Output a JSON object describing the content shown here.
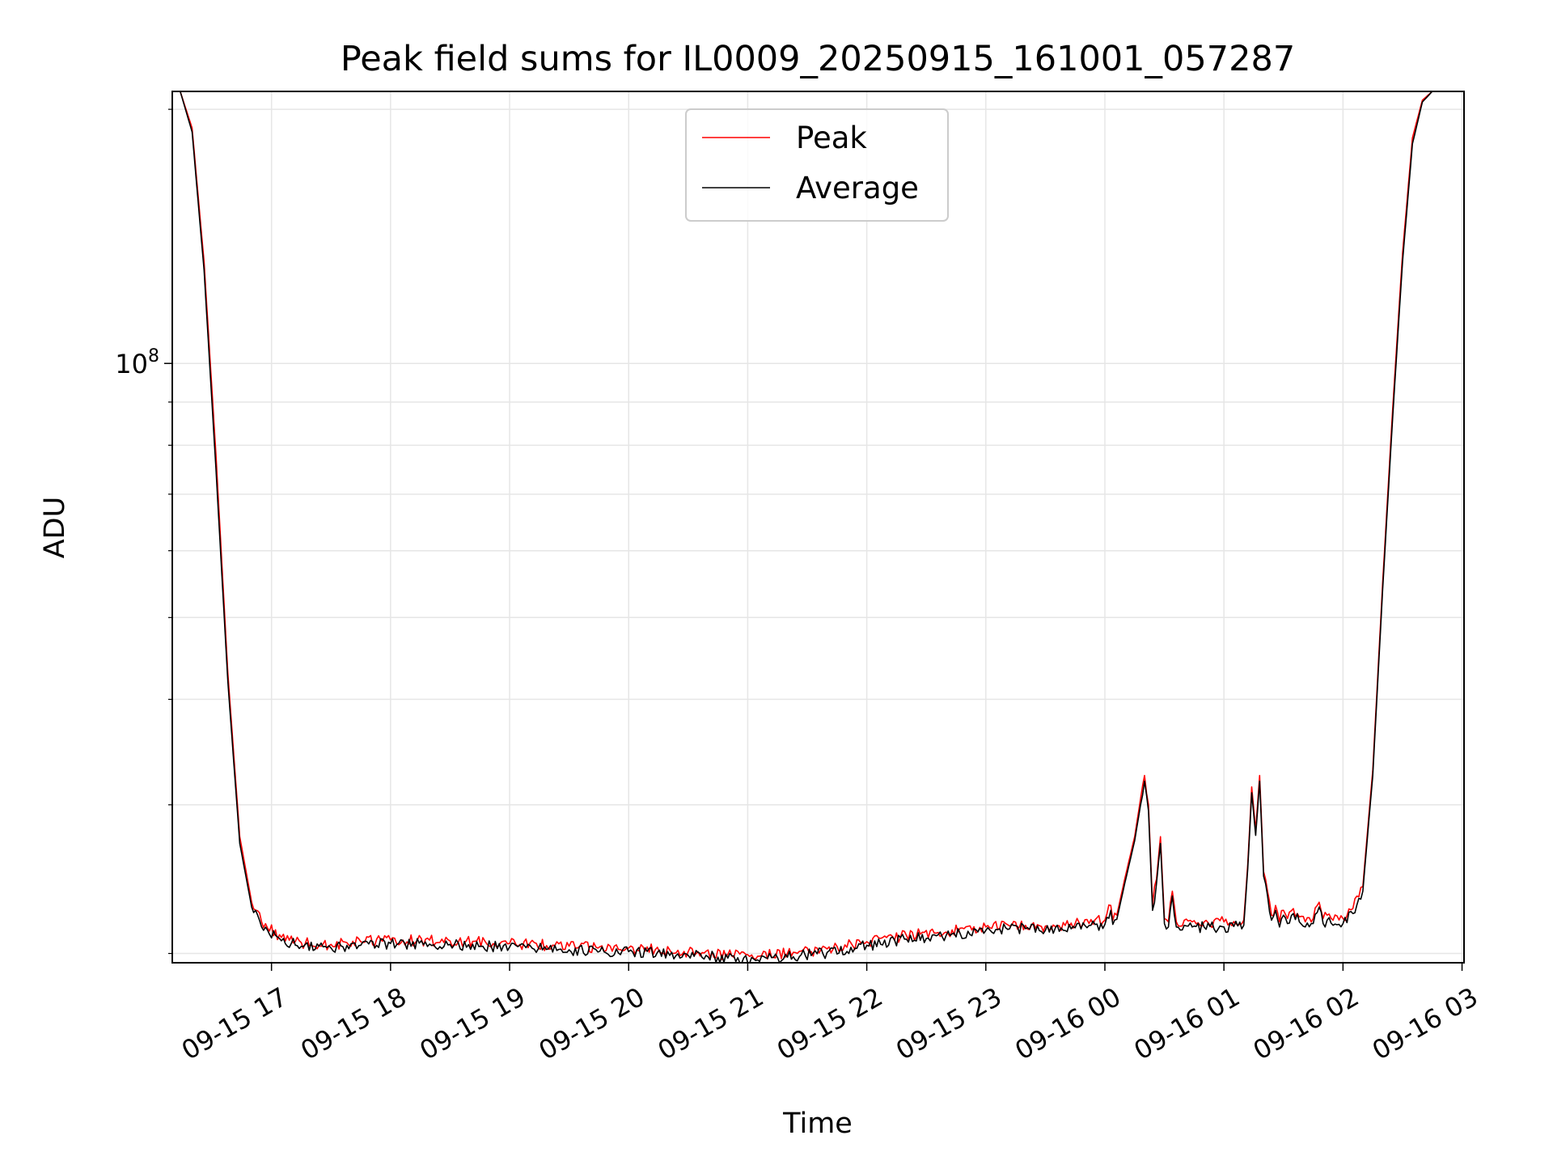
{
  "chart_data": {
    "type": "line",
    "title": "Peak field sums for IL0009_20250915_161001_057287",
    "xlabel": "Time",
    "ylabel": "ADU",
    "y_scale": "log",
    "xlim": [
      "2025-09-15 16:10",
      "2025-09-16 03:01"
    ],
    "ylim": [
      19500000,
      210000000
    ],
    "grid": true,
    "legend_position": "top-center",
    "x_ticks": [
      {
        "value": "2025-09-15 17:00",
        "label": "09-15 17"
      },
      {
        "value": "2025-09-15 18:00",
        "label": "09-15 18"
      },
      {
        "value": "2025-09-15 19:00",
        "label": "09-15 19"
      },
      {
        "value": "2025-09-15 20:00",
        "label": "09-15 20"
      },
      {
        "value": "2025-09-15 21:00",
        "label": "09-15 21"
      },
      {
        "value": "2025-09-15 22:00",
        "label": "09-15 22"
      },
      {
        "value": "2025-09-15 23:00",
        "label": "09-15 23"
      },
      {
        "value": "2025-09-16 00:00",
        "label": "09-16 00"
      },
      {
        "value": "2025-09-16 01:00",
        "label": "09-16 01"
      },
      {
        "value": "2025-09-16 02:00",
        "label": "09-16 02"
      },
      {
        "value": "2025-09-16 03:00",
        "label": "09-16 03"
      }
    ],
    "y_ticks": [
      {
        "value": 100000000,
        "label": "10",
        "exponent": "8"
      }
    ],
    "x": [
      "2025-09-15 16:10",
      "2025-09-15 16:14",
      "2025-09-15 16:20",
      "2025-09-15 16:26",
      "2025-09-15 16:32",
      "2025-09-15 16:38",
      "2025-09-15 16:44",
      "2025-09-15 16:50",
      "2025-09-15 16:55",
      "2025-09-15 17:05",
      "2025-09-15 17:15",
      "2025-09-15 17:30",
      "2025-09-15 17:45",
      "2025-09-15 18:00",
      "2025-09-15 18:30",
      "2025-09-15 19:00",
      "2025-09-15 19:30",
      "2025-09-15 20:00",
      "2025-09-15 20:30",
      "2025-09-15 20:50",
      "2025-09-15 21:05",
      "2025-09-15 21:20",
      "2025-09-15 21:40",
      "2025-09-15 22:00",
      "2025-09-15 22:20",
      "2025-09-15 22:40",
      "2025-09-15 23:00",
      "2025-09-15 23:10",
      "2025-09-15 23:20",
      "2025-09-15 23:30",
      "2025-09-15 23:45",
      "2025-09-16 00:00",
      "2025-09-16 00:03",
      "2025-09-16 00:04",
      "2025-09-16 00:06",
      "2025-09-16 00:10",
      "2025-09-16 00:15",
      "2025-09-16 00:18",
      "2025-09-16 00:20",
      "2025-09-16 00:22",
      "2025-09-16 00:24",
      "2025-09-16 00:26",
      "2025-09-16 00:28",
      "2025-09-16 00:30",
      "2025-09-16 00:32",
      "2025-09-16 00:34",
      "2025-09-16 00:36",
      "2025-09-16 00:40",
      "2025-09-16 00:42",
      "2025-09-16 00:44",
      "2025-09-16 00:50",
      "2025-09-16 01:00",
      "2025-09-16 01:10",
      "2025-09-16 01:12",
      "2025-09-16 01:14",
      "2025-09-16 01:16",
      "2025-09-16 01:18",
      "2025-09-16 01:20",
      "2025-09-16 01:22",
      "2025-09-16 01:24",
      "2025-09-16 01:26",
      "2025-09-16 01:28",
      "2025-09-16 01:30",
      "2025-09-16 01:32",
      "2025-09-16 01:35",
      "2025-09-16 01:38",
      "2025-09-16 01:41",
      "2025-09-16 01:45",
      "2025-09-16 01:48",
      "2025-09-16 01:50",
      "2025-09-16 01:52",
      "2025-09-16 01:55",
      "2025-09-16 02:00",
      "2025-09-16 02:05",
      "2025-09-16 02:10",
      "2025-09-16 02:15",
      "2025-09-16 02:20",
      "2025-09-16 02:25",
      "2025-09-16 02:30",
      "2025-09-16 02:35",
      "2025-09-16 02:40",
      "2025-09-16 02:45",
      "2025-09-16 02:50",
      "2025-09-16 02:55",
      "2025-09-16 03:01"
    ],
    "series": [
      {
        "name": "Peak",
        "color": "#ff0000",
        "values": [
          210000000,
          210000000,
          190000000,
          132000000,
          78000000,
          43000000,
          27500000,
          23000000,
          21800000,
          20900000,
          20600000,
          20500000,
          20650000,
          20750000,
          20700000,
          20550000,
          20400000,
          20300000,
          20100000,
          19950000,
          19850000,
          20000000,
          20250000,
          20650000,
          21000000,
          21200000,
          21500000,
          21700000,
          21600000,
          21550000,
          21700000,
          21900000,
          22800000,
          21900000,
          22200000,
          24500000,
          27500000,
          30500000,
          32500000,
          30000000,
          22800000,
          24500000,
          27500000,
          22000000,
          21800000,
          23700000,
          21800000,
          21900000,
          21850000,
          21800000,
          21800000,
          21800000,
          21900000,
          25500000,
          31500000,
          28000000,
          32500000,
          25000000,
          23700000,
          22200000,
          22800000,
          21800000,
          22500000,
          22000000,
          22600000,
          22100000,
          21800000,
          22000000,
          23000000,
          22000000,
          22200000,
          21900000,
          22000000,
          22600000,
          24000000,
          33000000,
          55000000,
          88000000,
          135000000,
          185000000,
          205000000,
          210000000,
          210000000,
          210000000,
          210000000
        ]
      },
      {
        "name": "Average",
        "color": "#000000",
        "values": [
          210000000,
          210000000,
          188000000,
          129000000,
          75000000,
          42000000,
          27000000,
          22700000,
          21500000,
          20700000,
          20400000,
          20300000,
          20450000,
          20550000,
          20500000,
          20350000,
          20200000,
          20100000,
          19900000,
          19750000,
          19650000,
          19800000,
          20050000,
          20450000,
          20800000,
          21000000,
          21300000,
          21450000,
          21400000,
          21300000,
          21450000,
          21650000,
          22500000,
          21650000,
          21950000,
          24200000,
          27200000,
          30000000,
          32000000,
          29500000,
          22500000,
          24200000,
          27000000,
          21700000,
          21500000,
          23400000,
          21500000,
          21600000,
          21550000,
          21500000,
          21500000,
          21500000,
          21600000,
          25200000,
          31000000,
          27600000,
          32000000,
          24700000,
          23400000,
          21900000,
          22500000,
          21500000,
          22200000,
          21700000,
          22300000,
          21800000,
          21500000,
          21700000,
          22700000,
          21700000,
          21900000,
          21600000,
          21700000,
          22300000,
          23700000,
          32500000,
          54000000,
          86000000,
          132000000,
          182000000,
          204000000,
          210000000,
          210000000,
          210000000,
          210000000
        ]
      }
    ]
  }
}
